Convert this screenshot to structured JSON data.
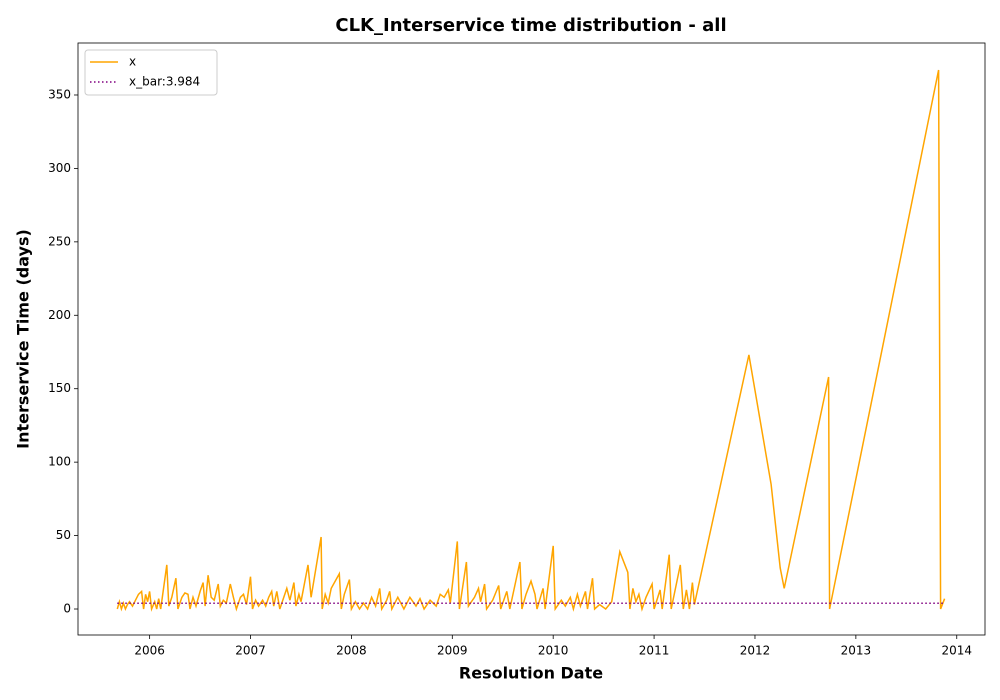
{
  "chart_data": {
    "type": "line",
    "title": "CLK_Interservice time distribution - all",
    "xlabel": "Resolution Date",
    "ylabel": "Interservice Time (days)",
    "xlim": [
      2005.29,
      2014.28
    ],
    "xticks": [
      2006,
      2007,
      2008,
      2009,
      2010,
      2011,
      2012,
      2013,
      2014
    ],
    "ylim": [
      -17.7,
      385.4
    ],
    "yticks": [
      0,
      50,
      100,
      150,
      200,
      250,
      300,
      350
    ],
    "legend": "upper left",
    "grid": false,
    "series": [
      {
        "name": "x",
        "color": "#ffa500",
        "linestyle": "solid",
        "x": [
          2005.68,
          2005.7,
          2005.72,
          2005.74,
          2005.76,
          2005.78,
          2005.8,
          2005.83,
          2005.86,
          2005.89,
          2005.92,
          2005.94,
          2005.96,
          2005.98,
          2006.0,
          2006.02,
          2006.05,
          2006.07,
          2006.09,
          2006.11,
          2006.17,
          2006.19,
          2006.22,
          2006.26,
          2006.28,
          2006.32,
          2006.35,
          2006.38,
          2006.4,
          2006.43,
          2006.46,
          2006.5,
          2006.53,
          2006.55,
          2006.58,
          2006.61,
          2006.64,
          2006.68,
          2006.7,
          2006.73,
          2006.76,
          2006.8,
          2006.83,
          2006.86,
          2006.9,
          2006.93,
          2006.96,
          2007.0,
          2007.02,
          2007.05,
          2007.08,
          2007.12,
          2007.15,
          2007.18,
          2007.21,
          2007.23,
          2007.26,
          2007.29,
          2007.33,
          2007.36,
          2007.39,
          2007.43,
          2007.45,
          2007.48,
          2007.5,
          2007.57,
          2007.6,
          2007.7,
          2007.71,
          2007.74,
          2007.77,
          2007.8,
          2007.88,
          2007.9,
          2007.93,
          2007.98,
          2008.0,
          2008.04,
          2008.08,
          2008.12,
          2008.16,
          2008.2,
          2008.24,
          2008.28,
          2008.3,
          2008.35,
          2008.38,
          2008.4,
          2008.46,
          2008.52,
          2008.58,
          2008.64,
          2008.68,
          2008.72,
          2008.78,
          2008.84,
          2008.88,
          2008.92,
          2008.96,
          2008.98,
          2009.05,
          2009.07,
          2009.14,
          2009.16,
          2009.22,
          2009.26,
          2009.28,
          2009.32,
          2009.34,
          2009.4,
          2009.46,
          2009.48,
          2009.54,
          2009.57,
          2009.67,
          2009.69,
          2009.73,
          2009.78,
          2009.82,
          2009.84,
          2009.9,
          2009.92,
          2010.0,
          2010.02,
          2010.08,
          2010.12,
          2010.17,
          2010.2,
          2010.24,
          2010.27,
          2010.32,
          2010.34,
          2010.39,
          2010.41,
          2010.46,
          2010.52,
          2010.58,
          2010.66,
          2010.74,
          2010.76,
          2010.79,
          2010.82,
          2010.85,
          2010.88,
          2010.92,
          2010.98,
          2011.0,
          2011.06,
          2011.08,
          2011.15,
          2011.17,
          2011.26,
          2011.29,
          2011.32,
          2011.35,
          2011.38,
          2011.4,
          2011.94,
          2012.16,
          2012.25,
          2012.29,
          2012.73,
          2012.74,
          2013.82,
          2013.84,
          2013.88
        ],
        "values": [
          0,
          5,
          0,
          4,
          0,
          3,
          5,
          2,
          6,
          10,
          12,
          0,
          10,
          5,
          12,
          0,
          5,
          0,
          7,
          0,
          30,
          2,
          8,
          21,
          0,
          8,
          11,
          10,
          0,
          8,
          2,
          12,
          18,
          2,
          23,
          8,
          6,
          17,
          2,
          6,
          4,
          17,
          8,
          0,
          8,
          10,
          3,
          22,
          0,
          6,
          2,
          6,
          2,
          8,
          12,
          2,
          12,
          0,
          8,
          14,
          6,
          18,
          2,
          10,
          5,
          30,
          8,
          49,
          0,
          10,
          4,
          14,
          24,
          0,
          10,
          20,
          0,
          5,
          0,
          4,
          0,
          8,
          2,
          14,
          0,
          6,
          12,
          0,
          8,
          0,
          8,
          2,
          7,
          0,
          6,
          2,
          10,
          8,
          13,
          4,
          46,
          0,
          32,
          2,
          8,
          14,
          5,
          17,
          0,
          6,
          16,
          0,
          12,
          0,
          32,
          0,
          10,
          19,
          10,
          0,
          14,
          0,
          43,
          0,
          6,
          2,
          8,
          0,
          10,
          2,
          12,
          0,
          21,
          0,
          3,
          0,
          5,
          39,
          25,
          0,
          14,
          5,
          10,
          0,
          8,
          17,
          0,
          13,
          0,
          37,
          0,
          30,
          0,
          13,
          0,
          18,
          3,
          173,
          85,
          28,
          14,
          158,
          0,
          367,
          0,
          7
        ]
      },
      {
        "name": "x_bar:3.984",
        "color": "#800080",
        "linestyle": "dotted",
        "x": [
          2005.68,
          2013.88
        ],
        "values": [
          3.984,
          3.984
        ]
      }
    ]
  }
}
